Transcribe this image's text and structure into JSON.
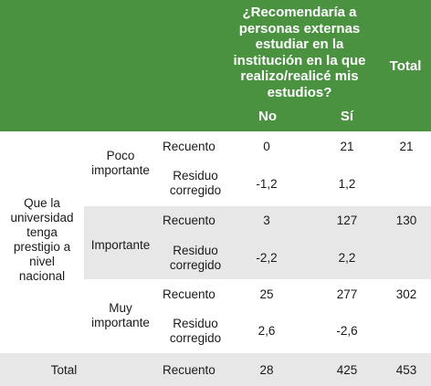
{
  "header": {
    "question": "¿Recomendaría a personas externas estudiar en la institución en la que realizo/realicé mis estudios?",
    "col_no": "No",
    "col_si": "Sí",
    "col_total": "Total"
  },
  "row_variable": "Que la universidad tenga prestigio a nivel nacional",
  "groups": [
    {
      "level": "Poco importante",
      "count": {
        "label": "Recuento",
        "no": "0",
        "si": "21",
        "total": "21"
      },
      "residual": {
        "label": "Residuo corregido",
        "no": "-1,2",
        "si": "1,2"
      }
    },
    {
      "level": "Importante",
      "count": {
        "label": "Recuento",
        "no": "3",
        "si": "127",
        "total": "130"
      },
      "residual": {
        "label": "Residuo corregido",
        "no": "-2,2",
        "si": "2,2"
      }
    },
    {
      "level": "Muy importante",
      "count": {
        "label": "Recuento",
        "no": "25",
        "si": "277",
        "total": "302"
      },
      "residual": {
        "label": "Residuo corregido",
        "no": "2,6",
        "si": "-2,6"
      }
    }
  ],
  "total_row": {
    "label": "Total",
    "stat": "Recuento",
    "no": "28",
    "si": "425",
    "total": "453"
  },
  "colors": {
    "header_bg": "#4a9240",
    "band_bg": "#e7e7e8"
  }
}
